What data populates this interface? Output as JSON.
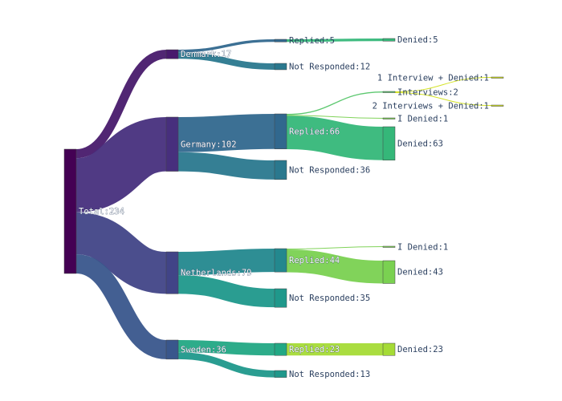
{
  "chart_data": {
    "type": "sankey",
    "title": "",
    "nodes": [
      {
        "id": "total",
        "label": "Total:234",
        "value": 234,
        "color": "#440154"
      },
      {
        "id": "denmark",
        "label": "Denmark:17",
        "value": 17,
        "color": "#481a6c"
      },
      {
        "id": "germany",
        "label": "Germany:102",
        "value": 102,
        "color": "#472f7d"
      },
      {
        "id": "netherlands",
        "label": "Netherlands:79",
        "value": 79,
        "color": "#414487"
      },
      {
        "id": "sweden",
        "label": "Sweden:36",
        "value": 36,
        "color": "#39568c"
      },
      {
        "id": "dk_replied",
        "label": "Replied:5",
        "value": 5,
        "color": "#31688e"
      },
      {
        "id": "dk_not",
        "label": "Not Responded:12",
        "value": 12,
        "color": "#2a788e"
      },
      {
        "id": "de_replied",
        "label": "Replied:66",
        "value": 66,
        "color": "#31688e"
      },
      {
        "id": "de_not",
        "label": "Not Responded:36",
        "value": 36,
        "color": "#2a788e"
      },
      {
        "id": "nl_replied",
        "label": "Replied:44",
        "value": 44,
        "color": "#23888e"
      },
      {
        "id": "nl_not",
        "label": "Not Responded:35",
        "value": 35,
        "color": "#1f988b"
      },
      {
        "id": "se_replied",
        "label": "Replied:23",
        "value": 23,
        "color": "#22a884"
      },
      {
        "id": "se_not",
        "label": "Not Responded:13",
        "value": 13,
        "color": "#1f988b"
      },
      {
        "id": "dk_denied",
        "label": "Denied:5",
        "value": 5,
        "color": "#35b779"
      },
      {
        "id": "de_interviews",
        "label": "Interviews:2",
        "value": 2,
        "color": "#54c568"
      },
      {
        "id": "de_idenied",
        "label": "I Denied:1",
        "value": 1,
        "color": "#7ad151"
      },
      {
        "id": "de_denied",
        "label": "Denied:63",
        "value": 63,
        "color": "#35b779"
      },
      {
        "id": "nl_idenied",
        "label": "I Denied:1",
        "value": 1,
        "color": "#7ad151"
      },
      {
        "id": "nl_denied",
        "label": "Denied:43",
        "value": 43,
        "color": "#7ad151"
      },
      {
        "id": "se_denied",
        "label": "Denied:23",
        "value": 23,
        "color": "#a5db36"
      },
      {
        "id": "int1_denied",
        "label": "1 Interview + Denied:1",
        "value": 1,
        "color": "#d2e21b"
      },
      {
        "id": "int2_denied",
        "label": "2 Interviews + Denied:1",
        "value": 1,
        "color": "#d2e21b"
      }
    ],
    "links": [
      {
        "source": "total",
        "target": "denmark",
        "value": 17
      },
      {
        "source": "total",
        "target": "germany",
        "value": 102
      },
      {
        "source": "total",
        "target": "netherlands",
        "value": 79
      },
      {
        "source": "total",
        "target": "sweden",
        "value": 36
      },
      {
        "source": "denmark",
        "target": "dk_replied",
        "value": 5
      },
      {
        "source": "denmark",
        "target": "dk_not",
        "value": 12
      },
      {
        "source": "germany",
        "target": "de_replied",
        "value": 66
      },
      {
        "source": "germany",
        "target": "de_not",
        "value": 36
      },
      {
        "source": "netherlands",
        "target": "nl_replied",
        "value": 44
      },
      {
        "source": "netherlands",
        "target": "nl_not",
        "value": 35
      },
      {
        "source": "sweden",
        "target": "se_replied",
        "value": 23
      },
      {
        "source": "sweden",
        "target": "se_not",
        "value": 13
      },
      {
        "source": "dk_replied",
        "target": "dk_denied",
        "value": 5
      },
      {
        "source": "de_replied",
        "target": "de_interviews",
        "value": 2
      },
      {
        "source": "de_replied",
        "target": "de_idenied",
        "value": 1
      },
      {
        "source": "de_replied",
        "target": "de_denied",
        "value": 63
      },
      {
        "source": "nl_replied",
        "target": "nl_idenied",
        "value": 1
      },
      {
        "source": "nl_replied",
        "target": "nl_denied",
        "value": 43
      },
      {
        "source": "se_replied",
        "target": "se_denied",
        "value": 23
      },
      {
        "source": "de_interviews",
        "target": "int1_denied",
        "value": 1
      },
      {
        "source": "de_interviews",
        "target": "int2_denied",
        "value": 1
      }
    ]
  }
}
